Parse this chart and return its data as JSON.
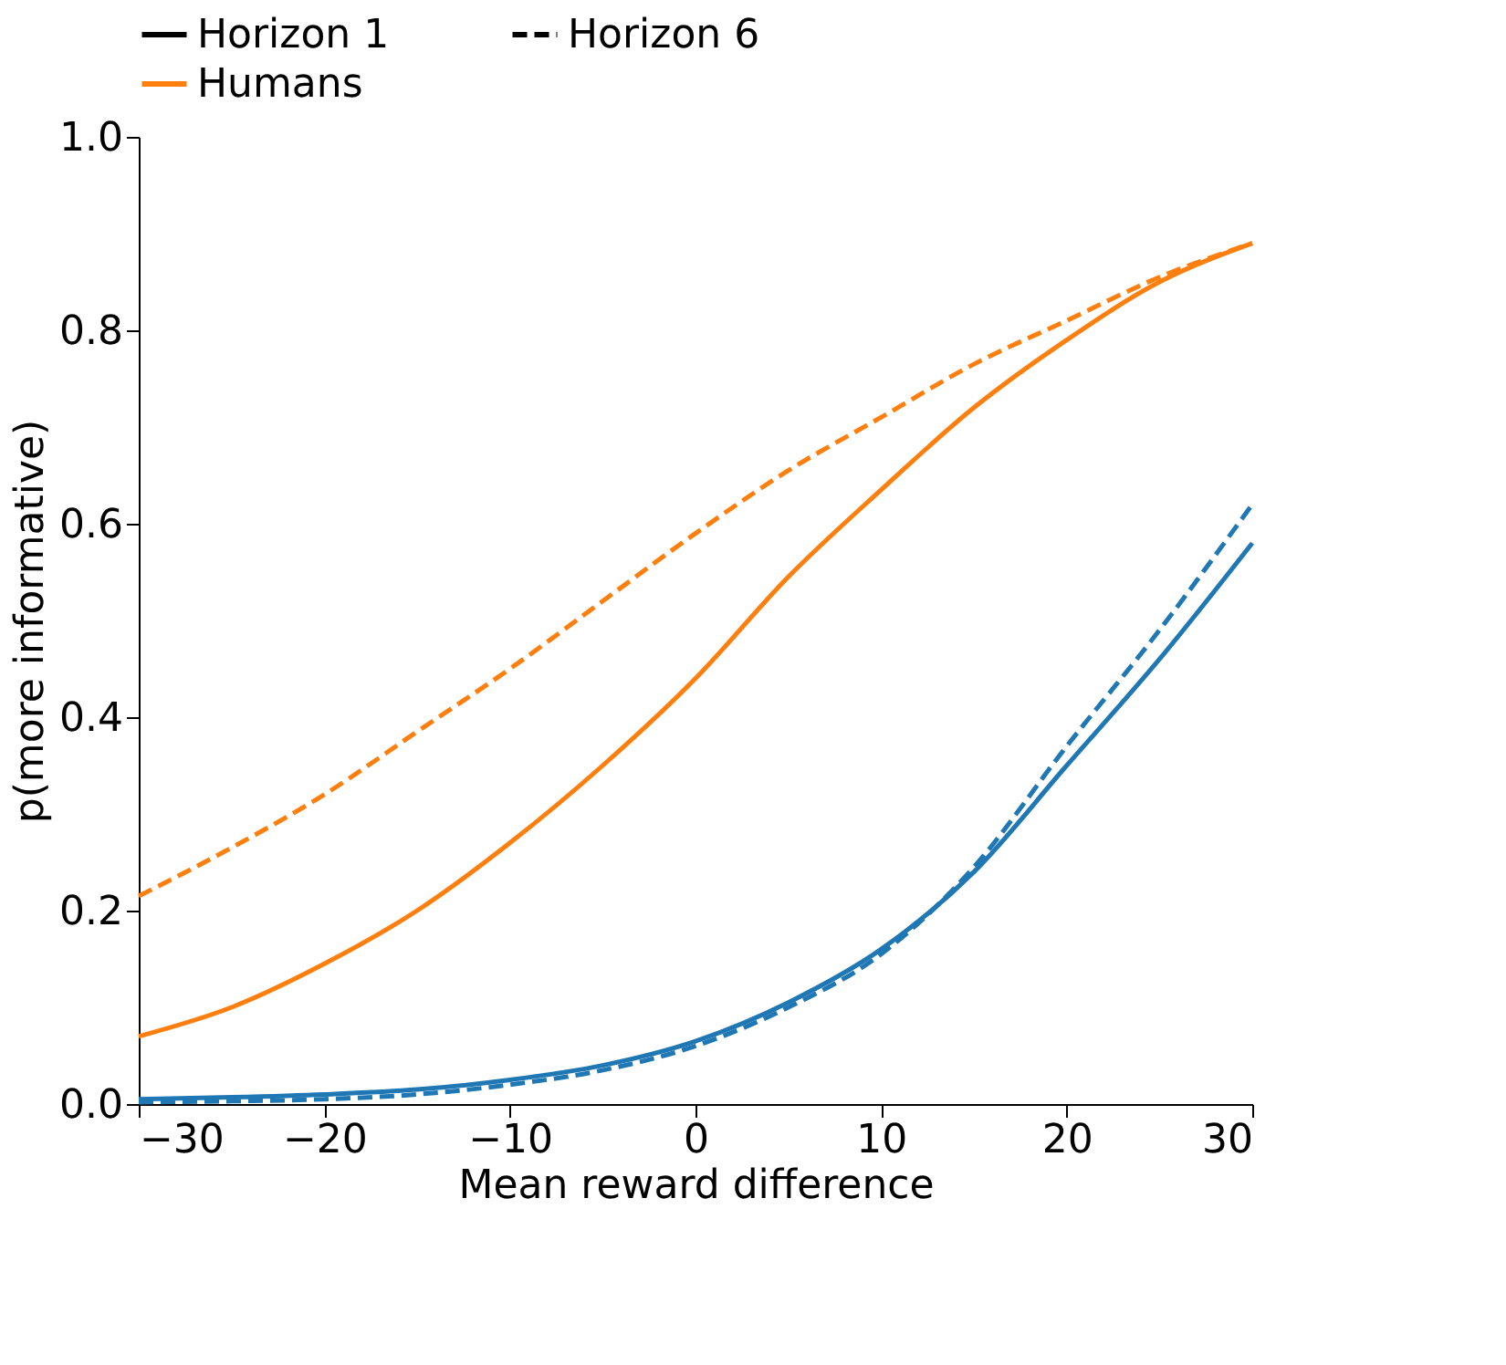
{
  "chart_data": {
    "type": "line",
    "xlabel": "Mean reward difference",
    "ylabel": "p(more informative)",
    "x": [
      -30,
      -25,
      -20,
      -15,
      -10,
      -5,
      0,
      5,
      10,
      15,
      20,
      25,
      30
    ],
    "xlim": [
      -30,
      30
    ],
    "xticks": [
      -30,
      -20,
      -10,
      0,
      10,
      20,
      30
    ],
    "ylim": [
      0,
      1
    ],
    "yticks": [
      {
        "value": 0,
        "label": "0.0"
      },
      0.2,
      0.4,
      0.6,
      0.8,
      {
        "value": 1,
        "label": "1.0"
      }
    ],
    "grid": false,
    "legend": "top",
    "marker": "none",
    "series": [
      {
        "name": "Horizon 1",
        "color": "#000000",
        "line_style": "solid",
        "values": [
          null,
          null,
          null,
          null,
          null,
          null,
          null,
          null,
          null,
          null,
          null,
          null,
          null
        ]
      },
      {
        "name": "Horizon 6",
        "color": "#000000",
        "line_style": "dashed",
        "values": [
          null,
          null,
          null,
          null,
          null,
          null,
          null,
          null,
          null,
          null,
          null,
          null,
          null
        ]
      },
      {
        "color": "#1f77b4",
        "line_style": "solid",
        "values": [
          0.005,
          0.007,
          0.01,
          0.015,
          0.025,
          0.04,
          0.065,
          0.105,
          0.16,
          0.24,
          0.35,
          0.46,
          0.58
        ]
      },
      {
        "name": "Humans",
        "color": "#ff7f0e",
        "line_style": "solid",
        "values": [
          0.07,
          0.1,
          0.145,
          0.2,
          0.27,
          0.35,
          0.44,
          0.545,
          0.635,
          0.72,
          0.79,
          0.85,
          0.89
        ]
      },
      {
        "color": "#1f77b4",
        "line_style": "dashed",
        "values": [
          0.002,
          0.003,
          0.005,
          0.01,
          0.02,
          0.035,
          0.06,
          0.1,
          0.155,
          0.245,
          0.37,
          0.49,
          0.62
        ]
      },
      {
        "color": "#ff7f0e",
        "line_style": "dashed",
        "values": [
          0.215,
          0.265,
          0.32,
          0.385,
          0.45,
          0.52,
          0.59,
          0.655,
          0.71,
          0.765,
          0.81,
          0.855,
          0.89
        ]
      }
    ]
  }
}
